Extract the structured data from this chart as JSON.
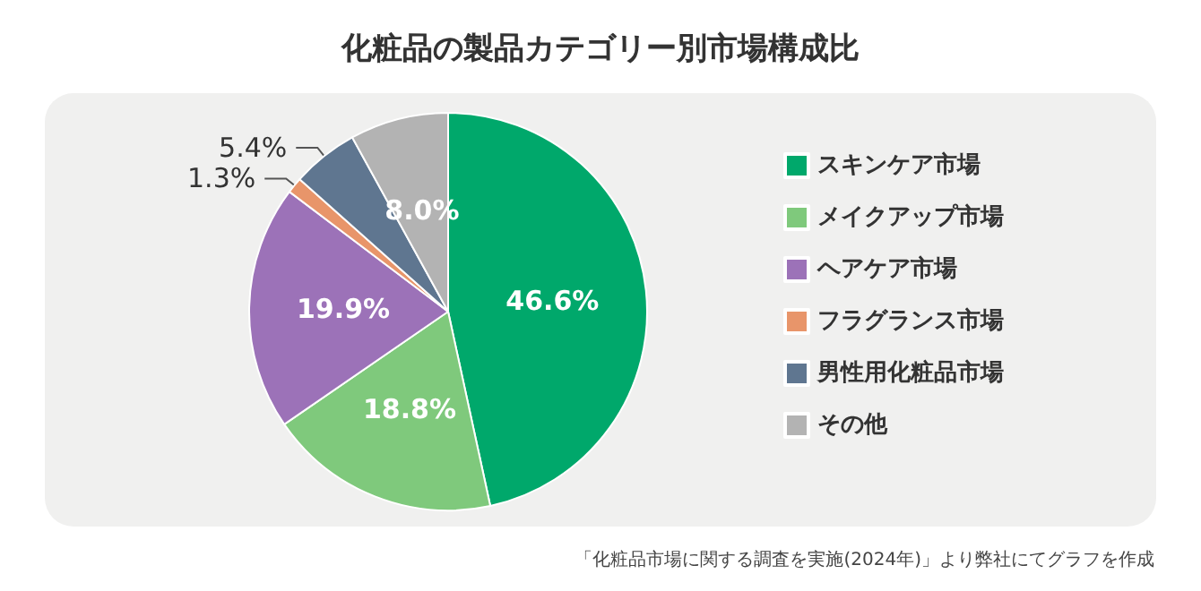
{
  "chart_data": {
    "type": "pie",
    "title": "化粧品の製品カテゴリー別市場構成比",
    "categories": [
      "スキンケア市場",
      "メイクアップ市場",
      "ヘアケア市場",
      "フラグランス市場",
      "男性用化粧品市場",
      "その他"
    ],
    "values": [
      46.6,
      18.8,
      19.9,
      1.3,
      5.4,
      8.0
    ],
    "value_labels": [
      "46.6%",
      "18.8%",
      "19.9%",
      "1.3%",
      "5.4%",
      "8.0%"
    ],
    "colors": [
      "#00a86b",
      "#7fc97c",
      "#9c72b8",
      "#e8956a",
      "#5f7690",
      "#b3b3b3"
    ],
    "legend": "right",
    "annotations": [
      "「化粧品市場に関する調査を実施(2024年)」より弊社にてグラフを作成"
    ]
  }
}
